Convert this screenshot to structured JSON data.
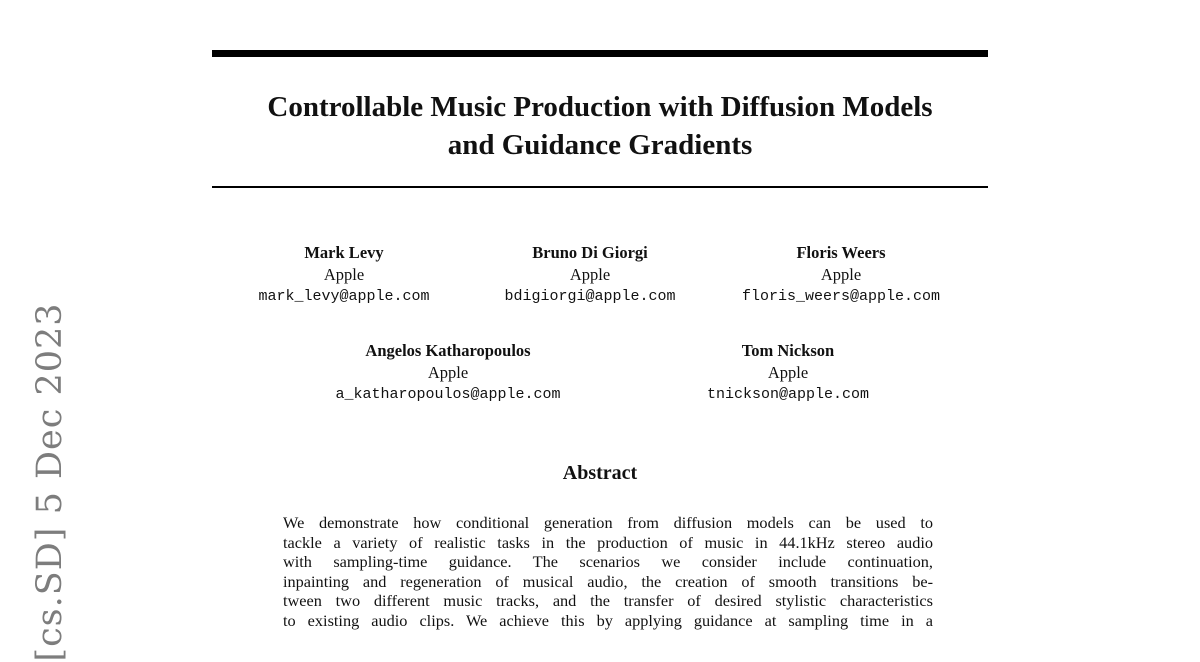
{
  "arxiv_stamp": "[cs.SD]  5 Dec 2023",
  "title_lines": [
    "Controllable Music Production with Diffusion Models",
    "and Guidance Gradients"
  ],
  "authors": [
    {
      "name": "Mark Levy",
      "affiliation": "Apple",
      "email": "mark_levy@apple.com"
    },
    {
      "name": "Bruno Di Giorgi",
      "affiliation": "Apple",
      "email": "bdigiorgi@apple.com"
    },
    {
      "name": "Floris Weers",
      "affiliation": "Apple",
      "email": "floris_weers@apple.com"
    },
    {
      "name": "Angelos Katharopoulos",
      "affiliation": "Apple",
      "email": "a_katharopoulos@apple.com"
    },
    {
      "name": "Tom Nickson",
      "affiliation": "Apple",
      "email": "tnickson@apple.com"
    }
  ],
  "abstract": {
    "heading": "Abstract",
    "lines": [
      "We demonstrate how conditional generation from diffusion models can be used to",
      "tackle a variety of realistic tasks in the production of music in 44.1kHz stereo audio",
      "with sampling-time guidance.  The scenarios we consider include continuation,",
      "inpainting and regeneration of musical audio, the creation of smooth transitions be-",
      "tween two different music tracks, and the transfer of desired stylistic characteristics",
      "to existing audio clips. We achieve this by applying guidance at sampling time in a"
    ]
  }
}
